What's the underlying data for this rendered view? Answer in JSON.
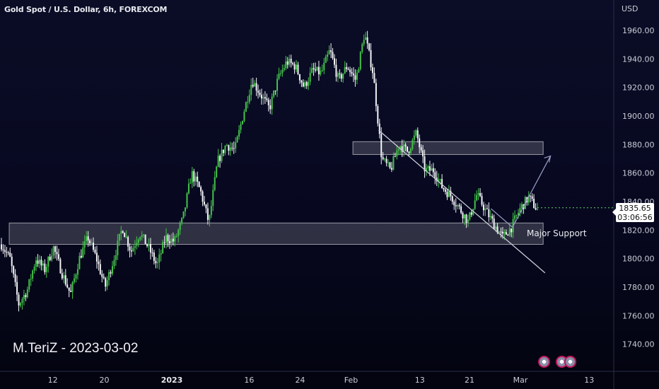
{
  "chart_title": "Gold Spot / U.S. Dollar, 6h, FOREXCOM",
  "currency": "USD",
  "author_label": "M.TeriZ - 2023-03-02",
  "current_price": "1835.65",
  "countdown": "03:06:56",
  "support_label": "Major Support",
  "colors": {
    "background": "#070820",
    "up": "#26a69a",
    "up_alt": "#5fd35f",
    "down": "#ffffff",
    "zone_fill": "#ffffff",
    "line": "#c9ccd6"
  },
  "chart_data": {
    "type": "candlestick",
    "title": "Gold Spot / U.S. Dollar, 6h, FOREXCOM",
    "y_unit": "USD",
    "ylim": [
      1728,
      1972
    ],
    "y_ticks": [
      "1960.00",
      "1940.00",
      "1920.00",
      "1900.00",
      "1880.00",
      "1860.00",
      "1840.00",
      "1820.00",
      "1800.00",
      "1780.00",
      "1760.00",
      "1740.00"
    ],
    "x_ticks": [
      {
        "label": "12",
        "year": false
      },
      {
        "label": "20",
        "year": false
      },
      {
        "label": "2023",
        "year": true
      },
      {
        "label": "16",
        "year": false
      },
      {
        "label": "24",
        "year": false
      },
      {
        "label": "Feb",
        "year": false
      },
      {
        "label": "13",
        "year": false
      },
      {
        "label": "21",
        "year": false
      },
      {
        "label": "Mar",
        "year": false
      },
      {
        "label": "13",
        "year": false
      }
    ],
    "price_path": [
      1810,
      1800,
      1768,
      1778,
      1800,
      1792,
      1808,
      1790,
      1775,
      1800,
      1815,
      1800,
      1780,
      1800,
      1822,
      1805,
      1818,
      1808,
      1795,
      1815,
      1812,
      1828,
      1860,
      1848,
      1825,
      1868,
      1880,
      1876,
      1902,
      1925,
      1915,
      1905,
      1926,
      1938,
      1935,
      1920,
      1932,
      1930,
      1946,
      1925,
      1935,
      1925,
      1958,
      1930,
      1870,
      1862,
      1880,
      1875,
      1888,
      1862,
      1862,
      1850,
      1844,
      1835,
      1826,
      1845,
      1834,
      1824,
      1815,
      1822,
      1835,
      1843,
      1834
    ],
    "zones": [
      {
        "name": "resistance-zone",
        "y_from": 1873,
        "y_to": 1882,
        "x_from": 0.575,
        "x_to": 0.885
      },
      {
        "name": "support-zone",
        "y_from": 1810,
        "y_to": 1825,
        "x_from": 0.015,
        "x_to": 0.885,
        "label": "Major Support"
      }
    ],
    "trendline": {
      "from": [
        0.617,
        1890
      ],
      "to": [
        0.888,
        1790
      ]
    },
    "projection": [
      [
        0.8,
        1835
      ],
      [
        0.835,
        1822
      ],
      [
        0.897,
        1872
      ]
    ]
  }
}
